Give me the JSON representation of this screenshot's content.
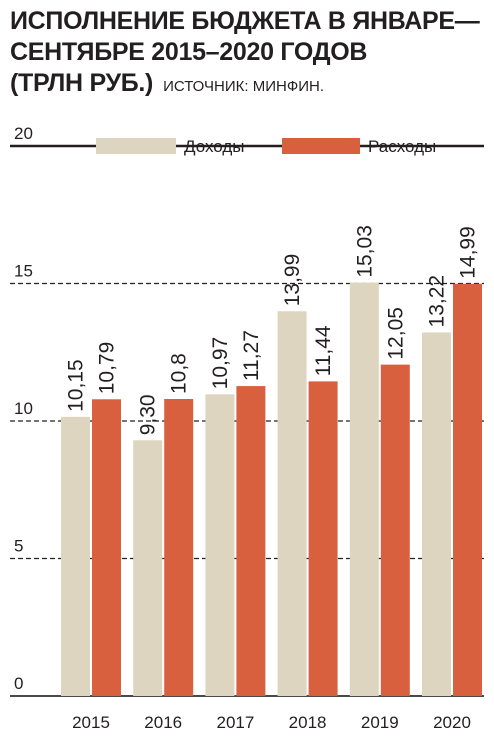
{
  "title_lines": [
    "ИСПОЛНЕНИЕ БЮДЖЕТА В ЯНВАРЕ—",
    "СЕНТЯБРЕ 2015–2020 ГОДОВ",
    "(ТРЛН РУБ.)"
  ],
  "source": "ИСТОЧНИК: МИНФИН.",
  "colors": {
    "income": "#ddd5bf",
    "expense": "#d9603e",
    "grid": "#231f20",
    "text": "#231f20"
  },
  "chart_data": {
    "type": "bar",
    "categories": [
      "2015",
      "2016",
      "2017",
      "2018",
      "2019",
      "2020"
    ],
    "series": [
      {
        "name": "Доходы",
        "values": [
          10.15,
          9.3,
          10.97,
          13.99,
          15.03,
          13.22
        ],
        "labels": [
          "10,15",
          "9,30",
          "10,97",
          "13,99",
          "15,03",
          "13,22"
        ]
      },
      {
        "name": "Расходы",
        "values": [
          10.79,
          10.8,
          11.27,
          11.44,
          12.05,
          14.99
        ],
        "labels": [
          "10,79",
          "10,8",
          "11,27",
          "11,44",
          "12,05",
          "14,99"
        ]
      }
    ],
    "ylim": [
      0,
      20
    ],
    "yticks": [
      0,
      5,
      10,
      15,
      20
    ],
    "ytick_labels": [
      "0",
      "5",
      "10",
      "15",
      "20"
    ],
    "grid": true,
    "legend": "top"
  }
}
